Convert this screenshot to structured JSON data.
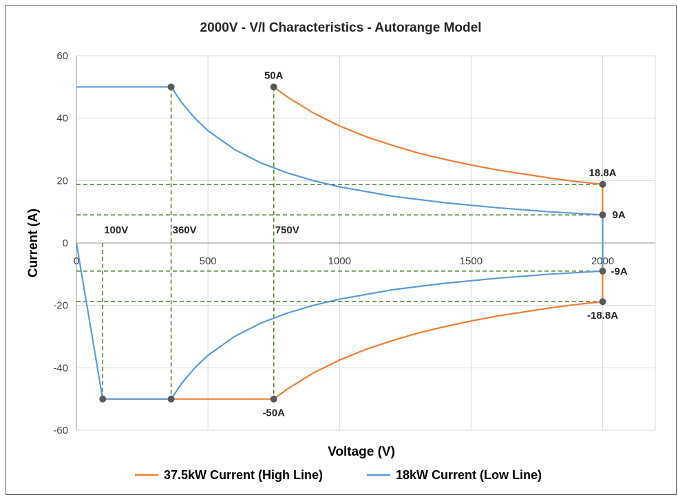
{
  "chart_data": {
    "type": "line",
    "title": "2000V - V/I Characteristics - Autorange Model",
    "xlabel": "Voltage (V)",
    "ylabel": "Current (A)",
    "xlim": [
      0,
      2200
    ],
    "ylim": [
      -60,
      60
    ],
    "x_ticks": [
      "0",
      "500",
      "1000",
      "1500",
      "2000"
    ],
    "y_ticks": [
      "60",
      "40",
      "20",
      "0",
      "-20",
      "-40",
      "-60"
    ],
    "grid": true,
    "legend_position": "bottom",
    "colors": {
      "high_line": "#ED7D31",
      "low_line": "#5B9BD5",
      "guide": "#548235",
      "marker": "#595959"
    },
    "series": [
      {
        "name": "37.5kW Current (High Line)",
        "upper": [
          [
            750,
            50
          ],
          [
            800,
            46.9
          ],
          [
            900,
            41.7
          ],
          [
            1000,
            37.5
          ],
          [
            1100,
            34.1
          ],
          [
            1200,
            31.3
          ],
          [
            1300,
            28.8
          ],
          [
            1400,
            26.8
          ],
          [
            1500,
            25.0
          ],
          [
            1600,
            23.4
          ],
          [
            1700,
            22.1
          ],
          [
            1800,
            20.8
          ],
          [
            1900,
            19.7
          ],
          [
            2000,
            18.8
          ]
        ],
        "lower": [
          [
            100,
            -50
          ],
          [
            750,
            -50
          ],
          [
            800,
            -46.9
          ],
          [
            900,
            -41.7
          ],
          [
            1000,
            -37.5
          ],
          [
            1100,
            -34.1
          ],
          [
            1200,
            -31.3
          ],
          [
            1300,
            -28.8
          ],
          [
            1400,
            -26.8
          ],
          [
            1500,
            -25.0
          ],
          [
            1600,
            -23.4
          ],
          [
            1700,
            -22.1
          ],
          [
            1800,
            -20.8
          ],
          [
            1900,
            -19.7
          ],
          [
            2000,
            -18.8
          ]
        ],
        "edge": [
          [
            2000,
            18.8
          ],
          [
            2000,
            -18.8
          ]
        ]
      },
      {
        "name": "18kW Current (Low Line)",
        "upper": [
          [
            0,
            50
          ],
          [
            360,
            50
          ],
          [
            400,
            45
          ],
          [
            450,
            40
          ],
          [
            500,
            36
          ],
          [
            600,
            30
          ],
          [
            700,
            25.7
          ],
          [
            800,
            22.5
          ],
          [
            900,
            20
          ],
          [
            1000,
            18
          ],
          [
            1200,
            15
          ],
          [
            1400,
            12.9
          ],
          [
            1600,
            11.3
          ],
          [
            1800,
            10
          ],
          [
            2000,
            9
          ]
        ],
        "lower": [
          [
            0,
            0
          ],
          [
            100,
            -50
          ],
          [
            360,
            -50
          ],
          [
            400,
            -45
          ],
          [
            450,
            -40
          ],
          [
            500,
            -36
          ],
          [
            600,
            -30
          ],
          [
            700,
            -25.7
          ],
          [
            800,
            -22.5
          ],
          [
            900,
            -20
          ],
          [
            1000,
            -18
          ],
          [
            1200,
            -15
          ],
          [
            1400,
            -12.9
          ],
          [
            1600,
            -11.3
          ],
          [
            1800,
            -10
          ],
          [
            2000,
            -9
          ]
        ],
        "edge": [
          [
            2000,
            9
          ],
          [
            2000,
            -9
          ]
        ]
      }
    ],
    "markers": [
      [
        100,
        -50
      ],
      [
        360,
        -50
      ],
      [
        750,
        -50
      ],
      [
        360,
        50
      ],
      [
        750,
        50
      ],
      [
        2000,
        18.8
      ],
      [
        2000,
        9
      ],
      [
        2000,
        -9
      ],
      [
        2000,
        -18.8
      ]
    ],
    "guides": {
      "vertical": [
        {
          "x": 100,
          "y": [
            0,
            -50
          ]
        },
        {
          "x": 360,
          "y": [
            50,
            -50
          ]
        },
        {
          "x": 750,
          "y": [
            50,
            -50
          ]
        }
      ],
      "horizontal": [
        {
          "y": 18.8,
          "x": [
            0,
            2000
          ]
        },
        {
          "y": 9,
          "x": [
            0,
            2000
          ]
        },
        {
          "y": -9,
          "x": [
            0,
            2000
          ]
        },
        {
          "y": -18.8,
          "x": [
            0,
            2000
          ]
        }
      ]
    },
    "annotations": [
      {
        "text": "50A",
        "x": 750,
        "y": 50,
        "placement": "above"
      },
      {
        "text": "18.8A",
        "x": 2000,
        "y": 18.8,
        "placement": "above"
      },
      {
        "text": "9A",
        "x": 2000,
        "y": 9,
        "placement": "right"
      },
      {
        "text": "100V",
        "x": 100,
        "y": 0,
        "placement": "above"
      },
      {
        "text": "360V",
        "x": 360,
        "y": 0,
        "placement": "above"
      },
      {
        "text": "750V",
        "x": 750,
        "y": 0,
        "placement": "above"
      },
      {
        "text": "-9A",
        "x": 2000,
        "y": -9,
        "placement": "right"
      },
      {
        "text": "-18.8A",
        "x": 2000,
        "y": -18.8,
        "placement": "below"
      },
      {
        "text": "-50A",
        "x": 750,
        "y": -50,
        "placement": "below"
      }
    ]
  }
}
